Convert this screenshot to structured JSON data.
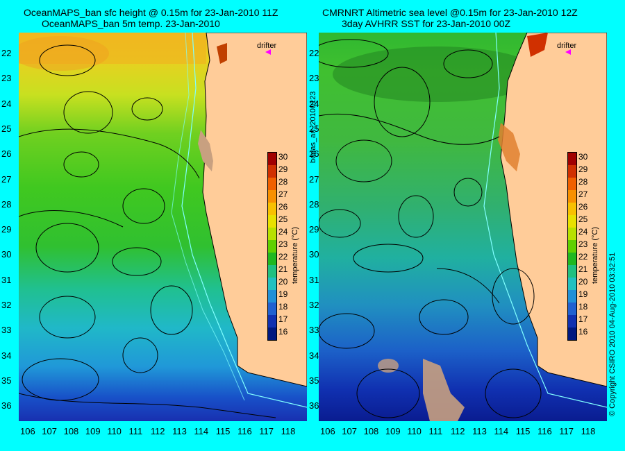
{
  "left": {
    "title_line1": "OceanMAPS_ban sfc height @ 0.15m for 23-Jan-2010 11Z",
    "title_line2": "OceanMAPS_ban 5m temp. 23-Jan-2010"
  },
  "right": {
    "title_line1": "CMRNRT Altimetric sea level  @0.15m  for 23-Jan-2010 12Z",
    "title_line2": "3day AVHRR SST for 23-Jan-2010 00Z"
  },
  "drifter_label": "drifter",
  "latitude_labels": [
    "22",
    "23",
    "24",
    "25",
    "26",
    "27",
    "28",
    "29",
    "30",
    "31",
    "32",
    "33",
    "34",
    "35",
    "36"
  ],
  "longitude_labels": [
    "106",
    "107",
    "108",
    "109",
    "110",
    "111",
    "112",
    "113",
    "114",
    "115",
    "116",
    "117",
    "118"
  ],
  "colorbar": {
    "labels": [
      "30",
      "29",
      "28",
      "27",
      "26",
      "25",
      "24",
      "23",
      "22",
      "21",
      "20",
      "19",
      "18",
      "17",
      "16"
    ],
    "unit": "temperature (°C)",
    "colors": [
      "#a00000",
      "#d03000",
      "#f06000",
      "#f89000",
      "#f8c000",
      "#e8e000",
      "#b8e000",
      "#60d000",
      "#20b820",
      "#20c080",
      "#20c0c0",
      "#2090d8",
      "#2060d0",
      "#1030b0",
      "#001880"
    ]
  },
  "side_label_right_panel": "bodas_an_20100123",
  "copyright": "© Copyright CSIRO 2010   04-Aug-2010 03:32:51",
  "colors": {
    "background": "#00ffff",
    "land": "#ffcc99",
    "drifter_marker": "#ff00ff",
    "contours": "#000000",
    "isobaths": "#80ffff"
  }
}
